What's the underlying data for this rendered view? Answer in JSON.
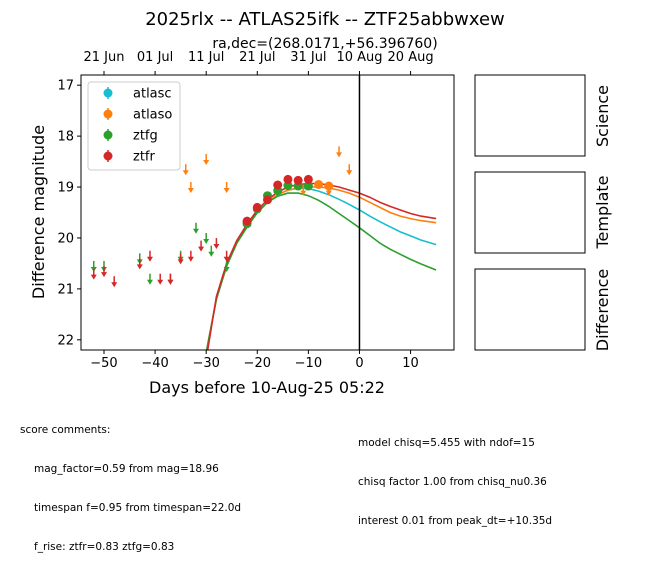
{
  "title": "2025rlx -- ATLAS25ifk -- ZTF25abbwxew",
  "subtitle": "ra,dec=(268.0171,+56.396760)",
  "chart_data": {
    "type": "scatter",
    "xlabel": "Days before 10-Aug-25 05:22",
    "ylabel": "Difference magnitude",
    "xlim": [
      -54.5,
      18.5
    ],
    "ylim": [
      22.2,
      16.8
    ],
    "y_inverted": true,
    "x_ticks": [
      -50,
      -40,
      -30,
      -20,
      -10,
      0,
      10
    ],
    "y_ticks": [
      17,
      18,
      19,
      20,
      21,
      22
    ],
    "top_axis_ticks": [
      {
        "label": "21 Jun",
        "x": -50
      },
      {
        "label": "01 Jul",
        "x": -40
      },
      {
        "label": "11 Jul",
        "x": -30
      },
      {
        "label": "21 Jul",
        "x": -20
      },
      {
        "label": "31 Jul",
        "x": -10
      },
      {
        "label": "10 Aug",
        "x": 0
      },
      {
        "label": "20 Aug",
        "x": 10
      }
    ],
    "vline_x": 0,
    "legend_position": "upper-left",
    "series": [
      {
        "name": "atlasc",
        "color": "#17becf",
        "detections": [],
        "upper_limits": [],
        "model": [
          [
            -29.9,
            22.2
          ],
          [
            -28,
            21.2
          ],
          [
            -26,
            20.55
          ],
          [
            -24,
            20.1
          ],
          [
            -22,
            19.78
          ],
          [
            -20,
            19.5
          ],
          [
            -18,
            19.3
          ],
          [
            -16,
            19.15
          ],
          [
            -14,
            19.06
          ],
          [
            -12,
            19.02
          ],
          [
            -10,
            19.03
          ],
          [
            -8,
            19.08
          ],
          [
            -6,
            19.15
          ],
          [
            -4,
            19.24
          ],
          [
            -2,
            19.34
          ],
          [
            0,
            19.45
          ],
          [
            2,
            19.57
          ],
          [
            4,
            19.68
          ],
          [
            6,
            19.78
          ],
          [
            8,
            19.88
          ],
          [
            10,
            19.96
          ],
          [
            12,
            20.04
          ],
          [
            15,
            20.13
          ]
        ]
      },
      {
        "name": "atlaso",
        "color": "#ff7f0e",
        "detections": [
          [
            -8,
            18.95,
            0.05
          ],
          [
            -6,
            18.98,
            0.05
          ]
        ],
        "upper_limits": [
          [
            -34,
            18.65
          ],
          [
            -33,
            19.0
          ],
          [
            -30,
            18.45
          ],
          [
            -26,
            19.0
          ],
          [
            -11,
            19.05
          ],
          [
            -6,
            19.05
          ],
          [
            -4,
            18.3
          ],
          [
            -2,
            18.65
          ]
        ],
        "model": [
          [
            -29.9,
            22.2
          ],
          [
            -28,
            21.2
          ],
          [
            -26,
            20.55
          ],
          [
            -24,
            20.1
          ],
          [
            -22,
            19.78
          ],
          [
            -20,
            19.5
          ],
          [
            -18,
            19.3
          ],
          [
            -16,
            19.15
          ],
          [
            -14,
            19.06
          ],
          [
            -12,
            19.02
          ],
          [
            -10,
            19.0
          ],
          [
            -8,
            19.0
          ],
          [
            -6,
            19.02
          ],
          [
            -4,
            19.06
          ],
          [
            -2,
            19.12
          ],
          [
            0,
            19.2
          ],
          [
            2,
            19.3
          ],
          [
            4,
            19.4
          ],
          [
            6,
            19.5
          ],
          [
            8,
            19.57
          ],
          [
            10,
            19.62
          ],
          [
            12,
            19.66
          ],
          [
            15,
            19.7
          ]
        ]
      },
      {
        "name": "ztfg",
        "color": "#2ca02c",
        "detections": [
          [
            -22,
            19.72,
            0.06
          ],
          [
            -20,
            19.43,
            0.05
          ],
          [
            -18,
            19.17,
            0.05
          ],
          [
            -16,
            19.07,
            0.05
          ],
          [
            -14,
            18.97,
            0.05
          ],
          [
            -12,
            18.98,
            0.05
          ],
          [
            -10,
            18.98,
            0.05
          ]
        ],
        "upper_limits": [
          [
            -52,
            20.55
          ],
          [
            -50,
            20.55
          ],
          [
            -43,
            20.4
          ],
          [
            -41,
            20.8
          ],
          [
            -37,
            20.8
          ],
          [
            -35,
            20.35
          ],
          [
            -32,
            19.8
          ],
          [
            -30,
            20.0
          ],
          [
            -29,
            20.25
          ],
          [
            -26,
            20.55
          ]
        ],
        "model": [
          [
            -29.9,
            22.2
          ],
          [
            -28,
            21.2
          ],
          [
            -26,
            20.55
          ],
          [
            -24,
            20.1
          ],
          [
            -22,
            19.78
          ],
          [
            -20,
            19.5
          ],
          [
            -18,
            19.3
          ],
          [
            -16,
            19.18
          ],
          [
            -14,
            19.12
          ],
          [
            -12,
            19.12
          ],
          [
            -10,
            19.17
          ],
          [
            -8,
            19.26
          ],
          [
            -6,
            19.38
          ],
          [
            -4,
            19.52
          ],
          [
            -2,
            19.66
          ],
          [
            0,
            19.8
          ],
          [
            2,
            19.95
          ],
          [
            4,
            20.1
          ],
          [
            6,
            20.22
          ],
          [
            8,
            20.32
          ],
          [
            10,
            20.42
          ],
          [
            12,
            20.51
          ],
          [
            15,
            20.63
          ]
        ]
      },
      {
        "name": "ztfr",
        "color": "#d62728",
        "detections": [
          [
            -22,
            19.67,
            0.06
          ],
          [
            -20,
            19.4,
            0.05
          ],
          [
            -18,
            19.25,
            0.05
          ],
          [
            -16,
            18.96,
            0.05
          ],
          [
            -14,
            18.85,
            0.05
          ],
          [
            -12,
            18.87,
            0.05
          ],
          [
            -10,
            18.85,
            0.05
          ]
        ],
        "upper_limits": [
          [
            -52,
            20.7
          ],
          [
            -50,
            20.65
          ],
          [
            -48,
            20.85
          ],
          [
            -43,
            20.5
          ],
          [
            -41,
            20.35
          ],
          [
            -39,
            20.8
          ],
          [
            -37,
            20.8
          ],
          [
            -35,
            20.4
          ],
          [
            -33,
            20.35
          ],
          [
            -31,
            20.15
          ],
          [
            -28,
            20.1
          ],
          [
            -26,
            20.35
          ]
        ],
        "model": [
          [
            -29.7,
            22.2
          ],
          [
            -28,
            21.15
          ],
          [
            -26,
            20.5
          ],
          [
            -24,
            20.05
          ],
          [
            -22,
            19.73
          ],
          [
            -20,
            19.45
          ],
          [
            -18,
            19.25
          ],
          [
            -16,
            19.1
          ],
          [
            -14,
            19.0
          ],
          [
            -12,
            18.95
          ],
          [
            -10,
            18.93
          ],
          [
            -8,
            18.93
          ],
          [
            -6,
            18.96
          ],
          [
            -4,
            19.0
          ],
          [
            -2,
            19.06
          ],
          [
            0,
            19.12
          ],
          [
            2,
            19.2
          ],
          [
            4,
            19.3
          ],
          [
            6,
            19.38
          ],
          [
            8,
            19.45
          ],
          [
            10,
            19.52
          ],
          [
            12,
            19.57
          ],
          [
            15,
            19.62
          ]
        ]
      }
    ]
  },
  "thumbnails": [
    {
      "label": "Science"
    },
    {
      "label": "Template"
    },
    {
      "label": "Difference"
    }
  ],
  "comments_left": {
    "heading": "score comments:",
    "lines": [
      "mag_factor=0.59 from mag=18.96",
      "timespan f=0.95 from timespan=22.0d",
      "f_rise: ztfr=0.83 ztfg=0.83"
    ]
  },
  "comments_right": {
    "lines": [
      "model chisq=5.455 with ndof=15",
      "chisq factor 1.00 from chisq_nu0.36",
      "interest 0.01 from peak_dt=+10.35d"
    ]
  }
}
